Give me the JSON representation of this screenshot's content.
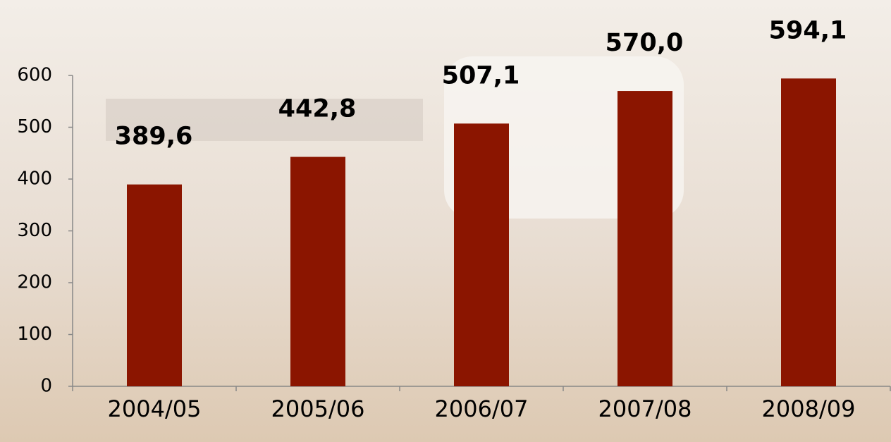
{
  "chart_data": {
    "type": "bar",
    "categories": [
      "2004/05",
      "2005/06",
      "2006/07",
      "2007/08",
      "2008/09"
    ],
    "values": [
      389.6,
      442.8,
      507.1,
      570.0,
      594.1
    ],
    "value_labels": [
      "389,6",
      "442,8",
      "507,1",
      "570,0",
      "594,1"
    ],
    "color": "#8b1500",
    "ylim": [
      0,
      600
    ],
    "yticks": [
      0,
      100,
      200,
      300,
      400,
      500,
      600
    ],
    "grid": false
  }
}
